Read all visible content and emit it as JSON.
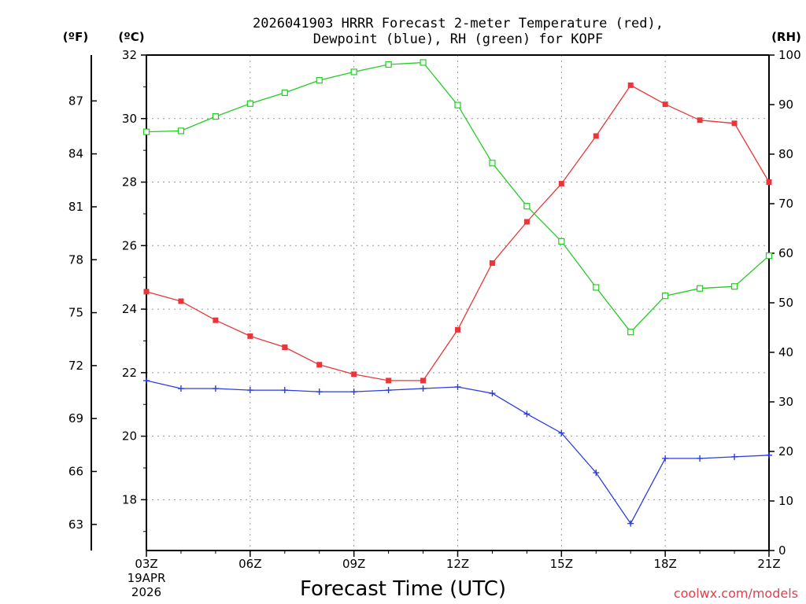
{
  "chart_data": {
    "type": "line",
    "title_lines": [
      "2026041903 HRRR Forecast 2-meter Temperature (red),",
      "Dewpoint (blue), RH (green) for KOPF"
    ],
    "xlabel": "Forecast Time (UTC)",
    "date_label": [
      "19APR",
      "2026"
    ],
    "credit": "coolwx.com/models",
    "unit_labels": {
      "fahrenheit": "(ºF)",
      "celsius": "(ºC)",
      "rh": "(RH)"
    },
    "x_tick_labels": [
      "03Z",
      "06Z",
      "09Z",
      "12Z",
      "15Z",
      "18Z",
      "21Z"
    ],
    "x_tick_hours": [
      3,
      6,
      9,
      12,
      15,
      18,
      21
    ],
    "xlim": [
      3,
      21
    ],
    "y_celsius": {
      "ylim": [
        16.4,
        32
      ],
      "ticks": [
        18,
        20,
        22,
        24,
        26,
        28,
        30,
        32
      ]
    },
    "y_fahrenheit": {
      "ticks": [
        63,
        66,
        69,
        72,
        75,
        78,
        81,
        84,
        87
      ]
    },
    "y_rh": {
      "ylim": [
        0,
        100
      ],
      "ticks": [
        0,
        10,
        20,
        30,
        40,
        50,
        60,
        70,
        80,
        90,
        100
      ]
    },
    "grid": true,
    "x": [
      3,
      4,
      5,
      6,
      7,
      8,
      9,
      10,
      11,
      12,
      13,
      14,
      15,
      16,
      17,
      18,
      19,
      20,
      21
    ],
    "series": [
      {
        "name": "Temperature",
        "color": "#e8373a",
        "marker": "filled-square",
        "axis": "celsius",
        "values": [
          24.55,
          24.25,
          23.65,
          23.15,
          22.8,
          22.25,
          21.95,
          21.75,
          21.75,
          23.35,
          25.45,
          26.75,
          27.95,
          29.45,
          31.05,
          30.45,
          29.95,
          29.85,
          28.0
        ]
      },
      {
        "name": "Dewpoint",
        "color": "#2a3de0",
        "marker": "plus",
        "axis": "celsius",
        "values": [
          21.75,
          21.5,
          21.5,
          21.45,
          21.45,
          21.4,
          21.4,
          21.45,
          21.5,
          21.55,
          21.35,
          20.7,
          20.1,
          18.85,
          17.25,
          19.3,
          19.3,
          19.35,
          19.4
        ]
      },
      {
        "name": "RH",
        "color": "#22cc22",
        "marker": "open-square",
        "axis": "rh",
        "values": [
          84.5,
          84.7,
          87.6,
          90.2,
          92.4,
          94.9,
          96.6,
          98.1,
          98.5,
          89.9,
          78.2,
          69.5,
          62.4,
          53.1,
          44.1,
          51.4,
          52.9,
          53.3,
          59.5
        ]
      }
    ]
  },
  "colors": {
    "axis": "#000000",
    "grid": "#999999",
    "background": "#ffffff"
  }
}
